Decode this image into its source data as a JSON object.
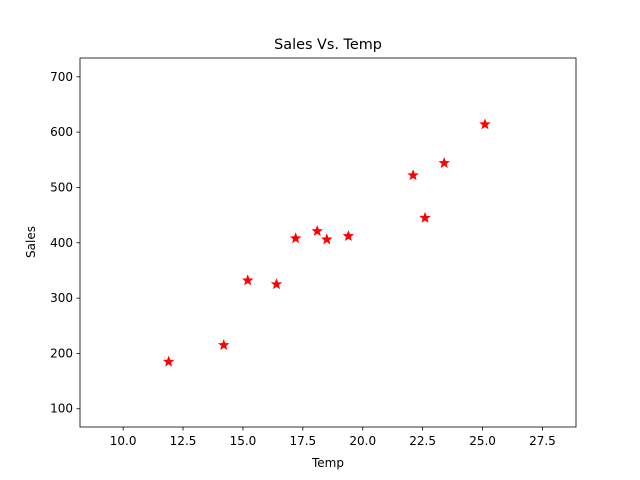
{
  "chart_data": {
    "type": "scatter",
    "title": "Sales Vs. Temp",
    "xlabel": "Temp",
    "ylabel": "Sales",
    "xlim": [
      8.2,
      28.9
    ],
    "ylim": [
      67,
      734
    ],
    "xticks": [
      10.0,
      12.5,
      15.0,
      17.5,
      20.0,
      22.5,
      25.0,
      27.5
    ],
    "xtick_labels": [
      "10.0",
      "12.5",
      "15.0",
      "17.5",
      "20.0",
      "22.5",
      "25.0",
      "27.5"
    ],
    "yticks": [
      100,
      200,
      300,
      400,
      500,
      600,
      700
    ],
    "ytick_labels": [
      "100",
      "200",
      "300",
      "400",
      "500",
      "600",
      "700"
    ],
    "marker": "star",
    "color": "#ff0000",
    "grid": false,
    "legend": false,
    "series": [
      {
        "points": [
          {
            "x": 11.9,
            "y": 185
          },
          {
            "x": 14.2,
            "y": 215
          },
          {
            "x": 15.2,
            "y": 332
          },
          {
            "x": 16.4,
            "y": 325
          },
          {
            "x": 17.2,
            "y": 408
          },
          {
            "x": 18.1,
            "y": 421
          },
          {
            "x": 18.5,
            "y": 406
          },
          {
            "x": 19.4,
            "y": 412
          },
          {
            "x": 22.1,
            "y": 522
          },
          {
            "x": 22.6,
            "y": 445
          },
          {
            "x": 23.4,
            "y": 544
          },
          {
            "x": 25.1,
            "y": 614
          }
        ]
      }
    ]
  }
}
